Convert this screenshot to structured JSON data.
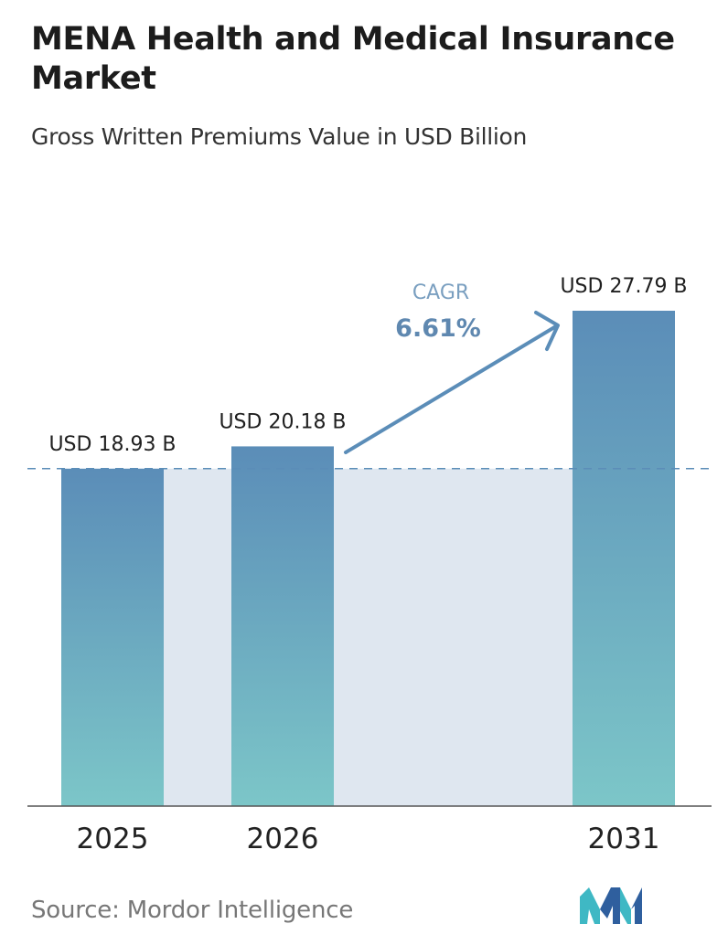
{
  "title": "MENA Health and Medical Insurance Market",
  "subtitle": "Gross Written Premiums Value in USD Billion",
  "source": "Source:  Mordor Intelligence",
  "colors": {
    "bar_top": "#5b8db8",
    "bar_bottom": "#7cc6c8",
    "band": "#dfe7f0",
    "dashed_line": "#5b8db8",
    "arrow": "#5b8db8",
    "cagr_text": "#5f88b0",
    "logo_dark": "#2f5f9e",
    "logo_light": "#3fb8c4"
  },
  "icons": {
    "logo": "mordor-intelligence-logo-icon",
    "arrow": "trend-arrow-icon"
  },
  "chart_data": {
    "type": "bar",
    "categories": [
      "2025",
      "2026",
      "2031"
    ],
    "values": [
      18.93,
      20.18,
      27.79
    ],
    "data_labels": [
      "USD 18.93 B",
      "USD 20.18 B",
      "USD 27.79 B"
    ],
    "title": "MENA Health and Medical Insurance Market",
    "subtitle": "Gross Written Premiums Value in USD Billion",
    "xlabel": "",
    "ylabel": "",
    "ylim": [
      0,
      27.79
    ],
    "grid": false,
    "cagr": {
      "label": "CAGR",
      "value": "6.61%"
    },
    "reference_line": 18.93
  }
}
